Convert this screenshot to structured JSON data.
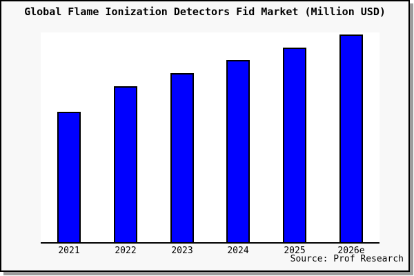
{
  "title": "Global Flame Ionization Detectors Fid Market (Million USD)",
  "source": "Source: Prof Research",
  "colors": {
    "bar_fill": "#0000ff",
    "bar_border": "#000000",
    "frame_background": "#f8f8f8",
    "plot_background": "#ffffff",
    "axis": "#000000",
    "shadow": "#9c9c9c"
  },
  "chart_data": {
    "type": "bar",
    "title": "Global Flame Ionization Detectors Fid Market (Million USD)",
    "categories": [
      "2021",
      "2022",
      "2023",
      "2024",
      "2025",
      "2026e"
    ],
    "values": [
      62.9,
      75.2,
      81.5,
      87.7,
      93.8,
      100
    ],
    "xlabel": "",
    "ylabel": "",
    "ylim": [
      0,
      101
    ],
    "y_axis_visible": false,
    "gridlines": false,
    "legend": "none",
    "note": "Y-axis has no tick labels in the source image; values are relative height estimates with the 2026e bar = 100."
  }
}
